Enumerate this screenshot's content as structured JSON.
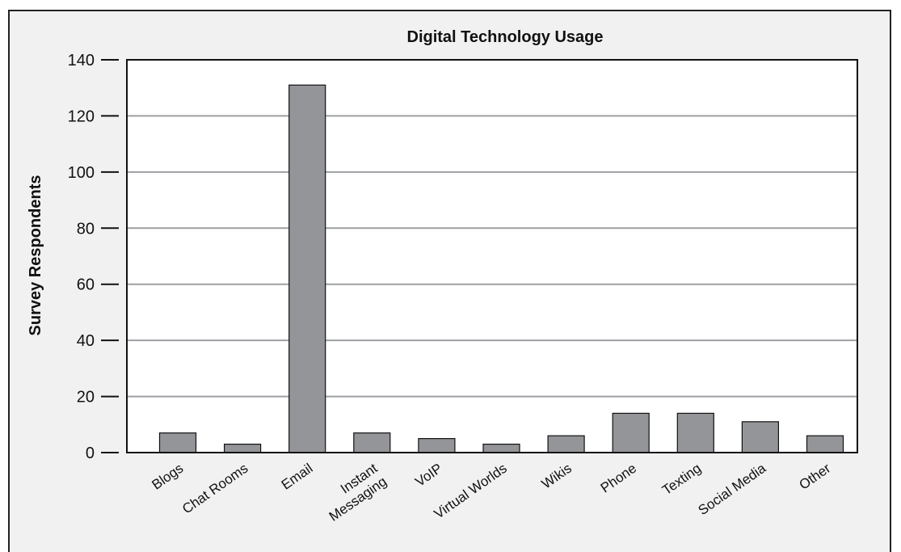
{
  "chart_data": {
    "type": "bar",
    "title": "Digital Technology Usage",
    "xlabel": "",
    "ylabel": "Survey Respondents",
    "ylim": [
      0,
      140
    ],
    "yticks": [
      0,
      20,
      40,
      60,
      80,
      100,
      120,
      140
    ],
    "grid": true,
    "categories": [
      [
        "Blogs"
      ],
      [
        "Chat Rooms"
      ],
      [
        "Email"
      ],
      [
        "Instant",
        "Messaging"
      ],
      [
        "VoIP"
      ],
      [
        "Virtual Worlds"
      ],
      [
        "Wikis"
      ],
      [
        "Phone"
      ],
      [
        "Texting"
      ],
      [
        "Social Media"
      ],
      [
        "Other"
      ]
    ],
    "values": [
      7,
      3,
      131,
      7,
      5,
      3,
      6,
      14,
      14,
      11,
      6
    ],
    "colors": {
      "bar": "#939598",
      "bar_stroke": "#111111",
      "grid": "#9d9fa2",
      "plot_background": "#ffffff",
      "axis": "#111111",
      "panel_background": "#f1f1f2"
    }
  }
}
